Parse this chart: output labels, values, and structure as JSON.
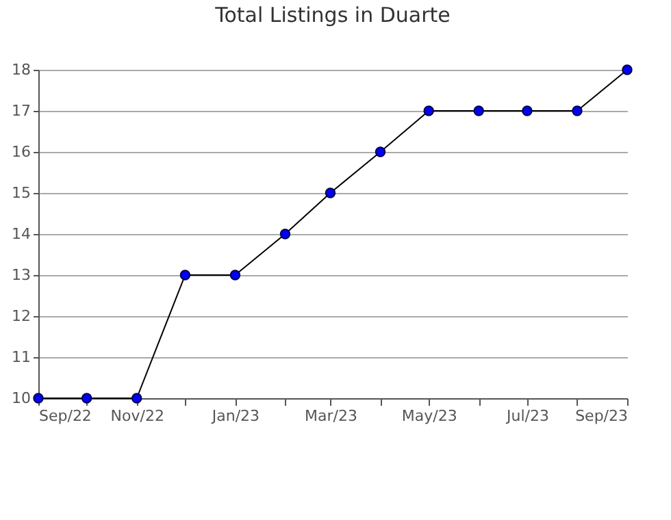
{
  "chart_data": {
    "type": "line",
    "title": "Total Listings in Duarte",
    "x": [
      "2022-09",
      "2022-10",
      "2022-11",
      "2022-12",
      "2023-01",
      "2023-02",
      "2023-03",
      "2023-04",
      "2023-05",
      "2023-06",
      "2023-07",
      "2023-08",
      "2023-09"
    ],
    "series": [
      {
        "color": "#0000ff",
        "values": [
          10,
          10,
          10,
          13,
          13,
          14,
          15,
          16,
          17,
          17,
          17,
          17,
          18
        ]
      }
    ],
    "xlim": [
      "2022-09",
      "2023-09"
    ],
    "xticks": [
      {
        "value": "2022-09",
        "label": "Sep/22"
      },
      {
        "value": "2022-10",
        "label": null
      },
      {
        "value": "2022-11",
        "label": "Nov/22"
      },
      {
        "value": "2022-12",
        "label": null
      },
      {
        "value": "2023-01",
        "label": "Jan/23"
      },
      {
        "value": "2023-02",
        "label": null
      },
      {
        "value": "2023-03",
        "label": "Mar/23"
      },
      {
        "value": "2023-04",
        "label": null
      },
      {
        "value": "2023-05",
        "label": "May/23"
      },
      {
        "value": "2023-06",
        "label": null
      },
      {
        "value": "2023-07",
        "label": "Jul/23"
      },
      {
        "value": "2023-08",
        "label": null
      },
      {
        "value": "2023-09",
        "label": "Sep/23"
      }
    ],
    "ylim": [
      10,
      18
    ],
    "yticks": [
      10,
      11,
      12,
      13,
      14,
      15,
      16,
      17,
      18
    ],
    "grid": "y",
    "marker": "circle",
    "line_style": "solid"
  }
}
